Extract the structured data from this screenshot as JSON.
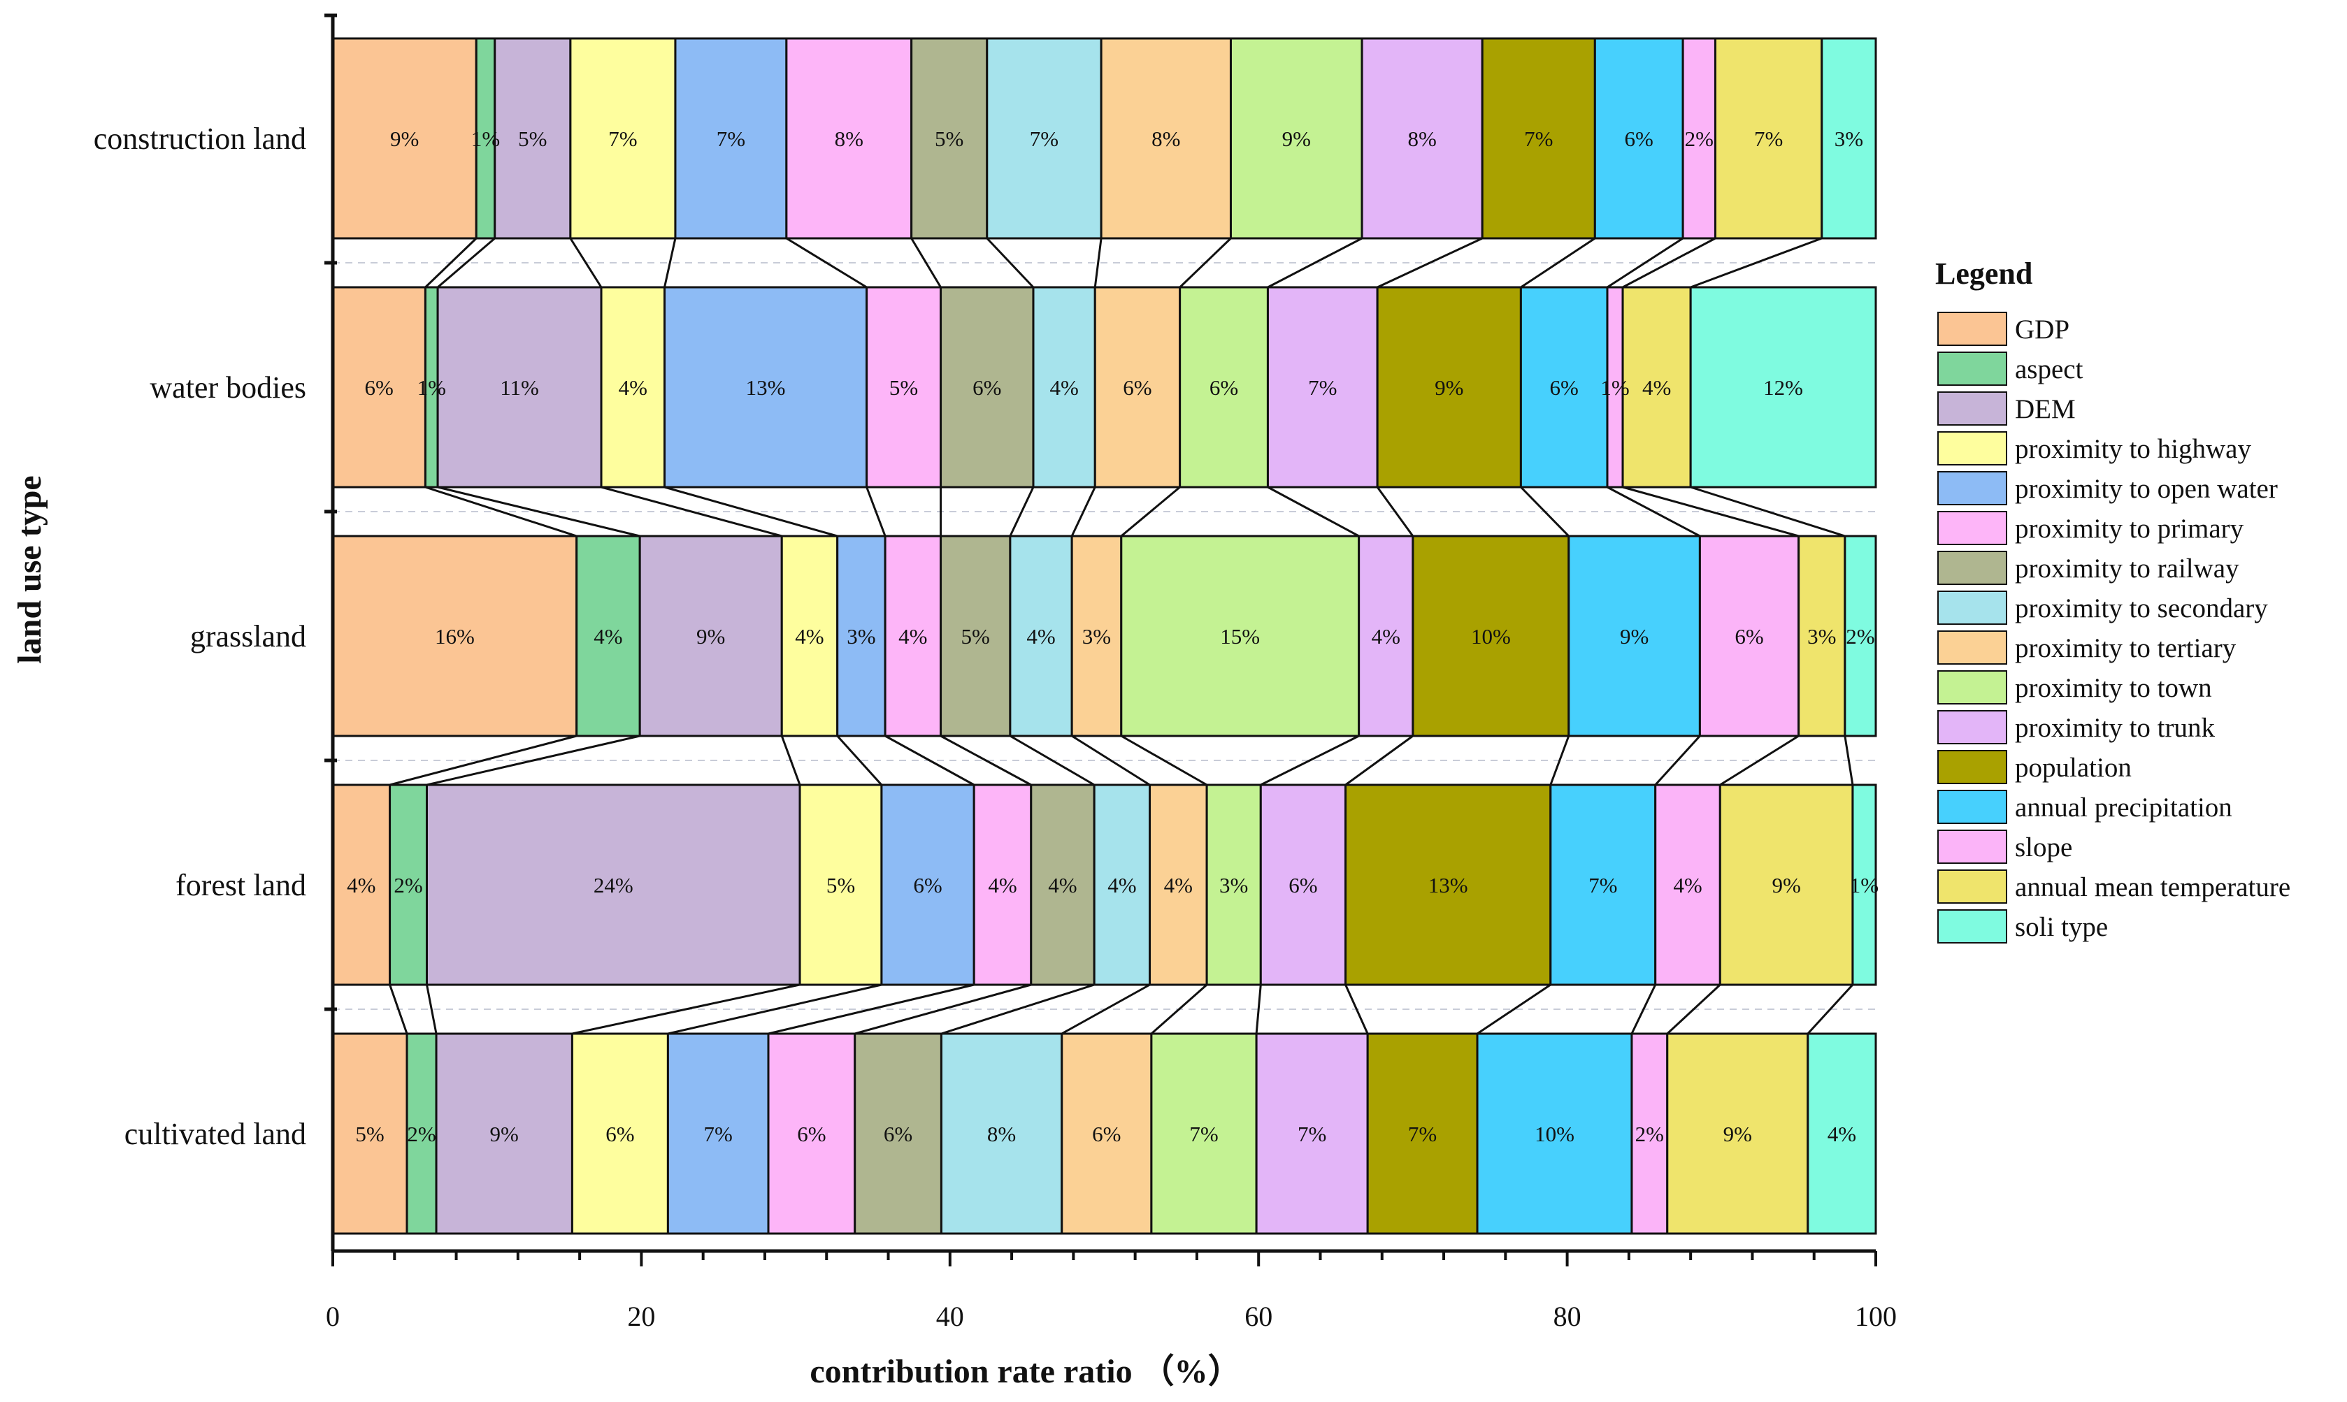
{
  "chart_data": {
    "type": "bar",
    "orientation": "horizontal",
    "stacked": true,
    "title": "",
    "xlabel": "contribution rate ratio （%）",
    "ylabel": "land use type",
    "xlim": [
      0,
      100
    ],
    "xticks": [
      0,
      20,
      40,
      60,
      80,
      100
    ],
    "xtick_labels": [
      "0",
      "20",
      "40",
      "60",
      "80",
      "100"
    ],
    "legend_title": "Legend",
    "legend_position": "right",
    "categories": [
      "construction land",
      "water bodies",
      "grassland",
      "forest land",
      "cultivated land"
    ],
    "series": [
      {
        "name": "GDP",
        "color": "#FBC594",
        "values": [
          9.3,
          6.0,
          15.8,
          3.7,
          4.8
        ],
        "labels": [
          "9%",
          "6%",
          "16%",
          "4%",
          "5%"
        ]
      },
      {
        "name": "aspect",
        "color": "#7FD69C",
        "values": [
          1.2,
          0.8,
          4.1,
          2.4,
          1.9
        ],
        "labels": [
          "1%",
          "1%",
          "4%",
          "2%",
          "2%"
        ]
      },
      {
        "name": "DEM",
        "color": "#C7B4D8",
        "values": [
          4.9,
          10.6,
          9.2,
          24.2,
          8.8
        ],
        "labels": [
          "5%",
          "11%",
          "9%",
          "24%",
          "9%"
        ]
      },
      {
        "name": "proximity to highway",
        "color": "#FEFE9E",
        "values": [
          6.8,
          4.1,
          3.6,
          5.3,
          6.2
        ],
        "labels": [
          "7%",
          "4%",
          "4%",
          "5%",
          "6%"
        ]
      },
      {
        "name": "proximity to open water",
        "color": "#8DBBF5",
        "values": [
          7.2,
          13.1,
          3.1,
          6.0,
          6.5
        ],
        "labels": [
          "7%",
          "13%",
          "3%",
          "6%",
          "7%"
        ]
      },
      {
        "name": "proximity to primary",
        "color": "#FDB5F8",
        "values": [
          8.1,
          4.8,
          3.6,
          3.7,
          5.6
        ],
        "labels": [
          "8%",
          "5%",
          "4%",
          "4%",
          "6%"
        ]
      },
      {
        "name": "proximity to railway",
        "color": "#AFB690",
        "values": [
          4.9,
          6.0,
          4.5,
          4.1,
          5.6
        ],
        "labels": [
          "5%",
          "6%",
          "5%",
          "4%",
          "6%"
        ]
      },
      {
        "name": "proximity to secondary",
        "color": "#A6E3EC",
        "values": [
          7.4,
          4.0,
          4.0,
          3.6,
          7.8
        ],
        "labels": [
          "7%",
          "4%",
          "4%",
          "4%",
          "8%"
        ]
      },
      {
        "name": "proximity to tertiary",
        "color": "#FBD195",
        "values": [
          8.4,
          5.5,
          3.2,
          3.7,
          5.8
        ],
        "labels": [
          "8%",
          "6%",
          "3%",
          "4%",
          "6%"
        ]
      },
      {
        "name": "proximity to town",
        "color": "#C4F293",
        "values": [
          8.5,
          5.7,
          15.4,
          3.5,
          6.8
        ],
        "labels": [
          "9%",
          "6%",
          "15%",
          "3%",
          "7%"
        ]
      },
      {
        "name": "proximity to trunk",
        "color": "#E3B5F8",
        "values": [
          7.8,
          7.1,
          3.5,
          5.5,
          7.2
        ],
        "labels": [
          "8%",
          "7%",
          "4%",
          "6%",
          "7%"
        ]
      },
      {
        "name": "population",
        "color": "#A9A100",
        "values": [
          7.3,
          9.3,
          10.1,
          13.3,
          7.1
        ],
        "labels": [
          "7%",
          "9%",
          "10%",
          "13%",
          "7%"
        ]
      },
      {
        "name": "annual precipitation",
        "color": "#47D0FD",
        "values": [
          5.7,
          5.6,
          8.5,
          6.8,
          10.0
        ],
        "labels": [
          "6%",
          "6%",
          "9%",
          "7%",
          "10%"
        ]
      },
      {
        "name": "slope",
        "color": "#FBB4F8",
        "values": [
          2.1,
          1.0,
          6.4,
          4.2,
          2.3
        ],
        "labels": [
          "2%",
          "1%",
          "6%",
          "4%",
          "2%"
        ]
      },
      {
        "name": "annual mean temperature",
        "color": "#EFE46C",
        "values": [
          6.9,
          4.4,
          3.0,
          8.6,
          9.1
        ],
        "labels": [
          "7%",
          "4%",
          "3%",
          "9%",
          "9%"
        ]
      },
      {
        "name": "soli type",
        "color": "#7FFBE0",
        "values": [
          3.5,
          12.0,
          2.0,
          1.5,
          4.4
        ],
        "labels": [
          "3%",
          "12%",
          "2%",
          "1%",
          "4%"
        ]
      }
    ]
  }
}
